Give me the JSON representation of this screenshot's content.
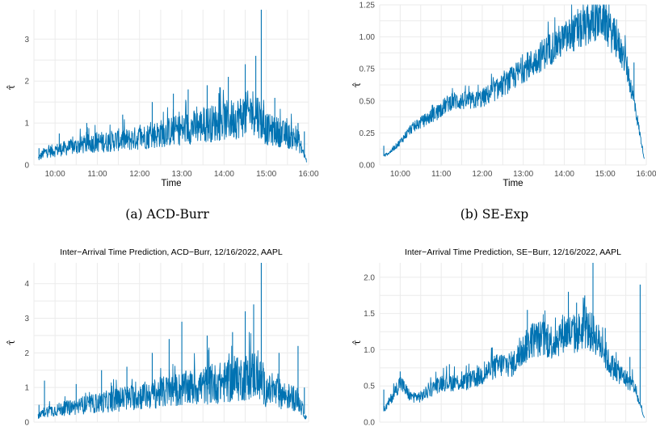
{
  "figure_captions": [
    "(a) ACD-Burr",
    "(b) SE-Exp"
  ],
  "chart_data": [
    {
      "type": "line",
      "title": "",
      "xlabel": "Time",
      "ylabel": "τ̂",
      "x_ticks": [
        "10:00",
        "11:00",
        "12:00",
        "13:00",
        "14:00",
        "15:00",
        "16:00"
      ],
      "y_ticks": [
        "0",
        "1",
        "2",
        "3"
      ],
      "xlim": [
        9.5,
        16.0
      ],
      "ylim": [
        0,
        3.7
      ],
      "grid": true,
      "series": [
        {
          "color": "#0072B2",
          "x": [
            9.6,
            9.75,
            10.0,
            10.25,
            10.5,
            10.75,
            11.0,
            11.25,
            11.5,
            11.75,
            12.0,
            12.25,
            12.5,
            12.75,
            13.0,
            13.25,
            13.5,
            13.75,
            14.0,
            14.25,
            14.5,
            14.75,
            14.9,
            15.0,
            15.25,
            15.5,
            15.75,
            15.95
          ],
          "y": [
            0.15,
            0.3,
            0.35,
            0.4,
            0.45,
            0.5,
            0.55,
            0.55,
            0.6,
            0.6,
            0.65,
            0.7,
            0.75,
            0.8,
            0.85,
            0.9,
            0.95,
            1.0,
            1.05,
            1.1,
            1.2,
            1.3,
            1.0,
            0.85,
            0.8,
            0.7,
            0.6,
            0.1
          ],
          "spikes": [
            [
              9.62,
              0.4
            ],
            [
              10.1,
              0.75
            ],
            [
              10.75,
              1.0
            ],
            [
              11.6,
              1.2
            ],
            [
              12.3,
              1.5
            ],
            [
              12.8,
              1.7
            ],
            [
              13.15,
              1.8
            ],
            [
              13.6,
              1.9
            ],
            [
              14.1,
              2.1
            ],
            [
              14.5,
              2.4
            ],
            [
              14.75,
              2.6
            ],
            [
              14.88,
              3.7
            ],
            [
              15.2,
              1.6
            ],
            [
              15.75,
              1.0
            ],
            [
              15.9,
              0.8
            ]
          ]
        }
      ]
    },
    {
      "type": "line",
      "title": "",
      "xlabel": "Time",
      "ylabel": "τ̂",
      "x_ticks": [
        "10:00",
        "11:00",
        "12:00",
        "13:00",
        "14:00",
        "15:00",
        "16:00"
      ],
      "y_ticks": [
        "0.00",
        "0.25",
        "0.50",
        "0.75",
        "1.00",
        "1.25"
      ],
      "xlim": [
        9.5,
        16.0
      ],
      "ylim": [
        0,
        1.25
      ],
      "grid": true,
      "series": [
        {
          "color": "#0072B2",
          "x": [
            9.6,
            9.75,
            10.0,
            10.25,
            10.5,
            10.75,
            11.0,
            11.25,
            11.5,
            11.75,
            12.0,
            12.25,
            12.5,
            12.75,
            13.0,
            13.25,
            13.5,
            13.75,
            14.0,
            14.25,
            14.5,
            14.75,
            14.95,
            15.1,
            15.3,
            15.5,
            15.7,
            15.95
          ],
          "y": [
            0.07,
            0.1,
            0.18,
            0.28,
            0.33,
            0.38,
            0.44,
            0.5,
            0.5,
            0.5,
            0.52,
            0.57,
            0.62,
            0.68,
            0.75,
            0.8,
            0.87,
            0.93,
            0.98,
            1.03,
            1.07,
            1.12,
            1.15,
            1.05,
            0.95,
            0.8,
            0.5,
            0.05
          ],
          "spikes": [
            [
              9.6,
              0.15
            ],
            [
              10.9,
              0.35
            ],
            [
              11.4,
              0.45
            ],
            [
              12.0,
              0.55
            ],
            [
              14.85,
              1.22
            ],
            [
              15.0,
              1.2
            ],
            [
              15.4,
              0.95
            ],
            [
              15.7,
              0.8
            ]
          ]
        }
      ]
    },
    {
      "type": "line",
      "title": "Inter−Arrival Time Prediction, ACD−Burr, 12/16/2022, AAPL",
      "xlabel": "",
      "ylabel": "τ̂",
      "x_ticks": [],
      "y_ticks": [
        "0",
        "1",
        "2",
        "3",
        "4"
      ],
      "xlim": [
        9.5,
        16.0
      ],
      "ylim": [
        0,
        4.6
      ],
      "grid": true,
      "series": [
        {
          "color": "#0072B2",
          "x": [
            9.6,
            9.75,
            10.0,
            10.25,
            10.5,
            10.75,
            11.0,
            11.25,
            11.5,
            11.75,
            12.0,
            12.25,
            12.5,
            12.75,
            13.0,
            13.25,
            13.5,
            13.75,
            14.0,
            14.25,
            14.5,
            14.75,
            14.9,
            15.0,
            15.25,
            15.5,
            15.75,
            15.95
          ],
          "y": [
            0.15,
            0.3,
            0.35,
            0.4,
            0.45,
            0.5,
            0.55,
            0.6,
            0.65,
            0.7,
            0.75,
            0.8,
            0.85,
            0.9,
            0.95,
            1.0,
            1.05,
            1.1,
            1.15,
            1.2,
            1.3,
            1.4,
            1.1,
            0.9,
            0.85,
            0.75,
            0.65,
            0.1
          ],
          "spikes": [
            [
              9.62,
              0.5
            ],
            [
              9.75,
              1.2
            ],
            [
              10.5,
              1.1
            ],
            [
              11.1,
              1.5
            ],
            [
              11.7,
              1.6
            ],
            [
              12.3,
              2.0
            ],
            [
              12.7,
              2.4
            ],
            [
              13.0,
              2.9
            ],
            [
              13.6,
              2.5
            ],
            [
              14.2,
              2.6
            ],
            [
              14.5,
              3.2
            ],
            [
              14.7,
              3.4
            ],
            [
              14.88,
              4.6
            ],
            [
              15.3,
              2.0
            ],
            [
              15.75,
              2.2
            ],
            [
              15.9,
              1.0
            ]
          ]
        }
      ]
    },
    {
      "type": "line",
      "title": "Inter−Arrival Time Prediction, SE−Burr, 12/16/2022, AAPL",
      "xlabel": "",
      "ylabel": "τ̂",
      "x_ticks": [],
      "y_ticks": [
        "0.0",
        "0.5",
        "1.0",
        "1.5",
        "2.0"
      ],
      "xlim": [
        9.5,
        16.0
      ],
      "ylim": [
        0,
        2.2
      ],
      "grid": true,
      "series": [
        {
          "color": "#0072B2",
          "x": [
            9.6,
            9.75,
            10.0,
            10.25,
            10.5,
            10.75,
            11.0,
            11.25,
            11.5,
            11.75,
            12.0,
            12.25,
            12.5,
            12.75,
            13.0,
            13.25,
            13.5,
            13.75,
            14.0,
            14.25,
            14.5,
            14.75,
            14.95,
            15.1,
            15.3,
            15.5,
            15.7,
            15.95
          ],
          "y": [
            0.15,
            0.3,
            0.55,
            0.35,
            0.35,
            0.45,
            0.55,
            0.55,
            0.55,
            0.58,
            0.65,
            0.75,
            0.8,
            0.8,
            1.0,
            1.15,
            1.15,
            1.1,
            1.25,
            1.2,
            1.3,
            1.2,
            1.0,
            0.8,
            0.7,
            0.6,
            0.5,
            0.05
          ],
          "spikes": [
            [
              9.6,
              0.45
            ],
            [
              10.0,
              0.7
            ],
            [
              11.2,
              0.8
            ],
            [
              11.5,
              0.7
            ],
            [
              12.3,
              0.85
            ],
            [
              13.1,
              1.55
            ],
            [
              13.6,
              1.35
            ],
            [
              14.1,
              1.8
            ],
            [
              14.3,
              1.65
            ],
            [
              14.5,
              1.75
            ],
            [
              14.7,
              2.2
            ],
            [
              15.0,
              1.3
            ],
            [
              15.6,
              0.9
            ],
            [
              15.85,
              1.9
            ]
          ]
        }
      ]
    }
  ]
}
